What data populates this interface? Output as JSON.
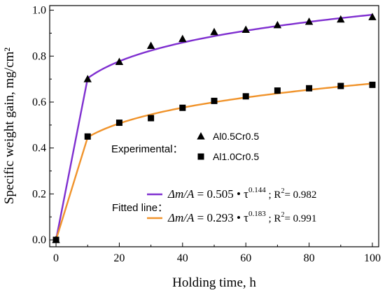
{
  "chart_data": {
    "type": "scatter",
    "xlabel": "Holding time, h",
    "ylabel": "Specific weight gain, mg/cm²",
    "xlim": [
      -2,
      102
    ],
    "ylim": [
      -0.03,
      1.02
    ],
    "xticks": [
      "0",
      "20",
      "40",
      "60",
      "80",
      "100"
    ],
    "yticks": [
      "0.0",
      "0.2",
      "0.4",
      "0.6",
      "0.8",
      "1.0"
    ],
    "grid": false,
    "series": [
      {
        "name": "Al0.5Cr0.5",
        "marker": "triangle",
        "color": "#000000",
        "x": [
          0,
          10,
          20,
          30,
          40,
          50,
          60,
          70,
          80,
          90,
          100
        ],
        "y": [
          0.0,
          0.7,
          0.775,
          0.845,
          0.875,
          0.905,
          0.915,
          0.935,
          0.95,
          0.96,
          0.97
        ]
      },
      {
        "name": "Al1.0Cr0.5",
        "marker": "square",
        "color": "#000000",
        "x": [
          0,
          10,
          20,
          30,
          40,
          50,
          60,
          70,
          80,
          90,
          100
        ],
        "y": [
          0.0,
          0.45,
          0.51,
          0.53,
          0.575,
          0.605,
          0.625,
          0.65,
          0.66,
          0.67,
          0.675
        ]
      }
    ],
    "fits": [
      {
        "color": "#7f2fd0",
        "a": 0.505,
        "b": 0.144,
        "lhs": "Δm/A",
        "rhs_coef": "= 0.505 • τ",
        "exp": "0.144",
        "r2_prefix": "; R",
        "r2_sup": "2",
        "r2_value": "= 0.982"
      },
      {
        "color": "#f0932b",
        "a": 0.293,
        "b": 0.183,
        "lhs": "Δm/A",
        "rhs_coef": "= 0.293 • τ",
        "exp": "0.183",
        "r2_prefix": "; R",
        "r2_sup": "2",
        "r2_value": "= 0.991"
      }
    ],
    "legend": {
      "placement": "center-right",
      "experimental_label": "Experimental：",
      "fitted_label": "Fitted line："
    }
  }
}
